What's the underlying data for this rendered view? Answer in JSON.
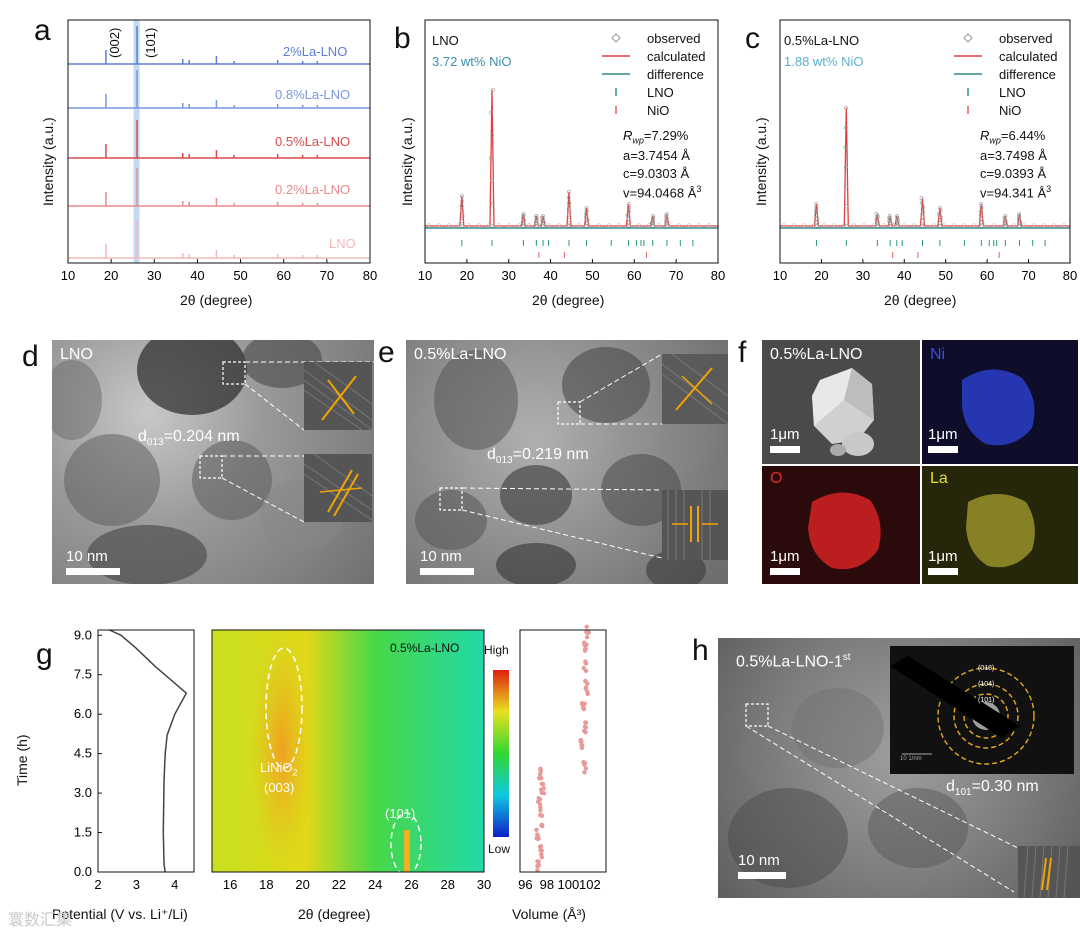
{
  "figure": {
    "panel_letters": [
      "a",
      "b",
      "c",
      "d",
      "e",
      "f",
      "g",
      "h"
    ],
    "watermark": "寰数汇集"
  },
  "panel_a": {
    "peaks": [
      "(002)",
      "(101)"
    ],
    "samples": [
      {
        "name": "2%La-LNO",
        "color": "#5b7fd6"
      },
      {
        "name": "0.8%La-LNO",
        "color": "#7a98e0"
      },
      {
        "name": "0.5%La-LNO",
        "color": "#d94a4a"
      },
      {
        "name": "0.2%La-LNO",
        "color": "#e88a8a"
      },
      {
        "name": "LNO",
        "color": "#f2b8b8"
      }
    ],
    "xlabel": "2θ (degree)",
    "ylabel": "Intensity (a.u.)",
    "xticks": [
      "10",
      "20",
      "30",
      "40",
      "50",
      "60",
      "70",
      "80"
    ]
  },
  "panel_b": {
    "sample": "LNO",
    "nio": "3.72 wt% NiO",
    "legend": [
      "observed",
      "calculated",
      "difference",
      "LNO",
      "NiO"
    ],
    "rwp_label": "R",
    "rwp_sub": "wp",
    "rwp_value": "=7.29%",
    "a": "a=3.7454 Å",
    "c": "c=9.0303 Å",
    "v": "v=94.0468 Å",
    "v_sup": "3",
    "xlabel": "2θ (degree)",
    "ylabel": "Intensity (a.u.)",
    "xticks": [
      "10",
      "20",
      "30",
      "40",
      "50",
      "60",
      "70",
      "80"
    ]
  },
  "panel_c": {
    "sample": "0.5%La-LNO",
    "nio": "1.88 wt% NiO",
    "legend": [
      "observed",
      "calculated",
      "difference",
      "LNO",
      "NiO"
    ],
    "rwp_label": "R",
    "rwp_sub": "wp",
    "rwp_value": "=6.44%",
    "a": "a=3.7498 Å",
    "c": "c=9.0393 Å",
    "v": "v=94.341 Å",
    "v_sup": "3",
    "xlabel": "2θ (degree)",
    "ylabel": "Intensity (a.u.)",
    "xticks": [
      "10",
      "20",
      "30",
      "40",
      "50",
      "60",
      "70",
      "80"
    ]
  },
  "panel_d": {
    "sample": "LNO",
    "d_prefix": "d",
    "d_sub": "013",
    "d_value": "=0.204 nm",
    "scale": "10 nm"
  },
  "panel_e": {
    "sample": "0.5%La-LNO",
    "d_prefix": "d",
    "d_sub": "013",
    "d_value": "=0.219 nm",
    "scale": "10 nm"
  },
  "panel_f": {
    "sample": "0.5%La-LNO",
    "maps": [
      {
        "element": "Ni",
        "color": "#2a3cc8"
      },
      {
        "element": "O",
        "color": "#d42222"
      },
      {
        "element": "La",
        "color": "#c8c030"
      }
    ],
    "scale": "1μm"
  },
  "panel_g": {
    "sample": "0.5%La-LNO",
    "ylabel": "Time (h)",
    "yticks": [
      "0.0",
      "1.5",
      "3.0",
      "4.5",
      "6.0",
      "7.5",
      "9.0"
    ],
    "potential_xlabel": "Potential (V vs. Li⁺/Li)",
    "potential_xticks": [
      "2",
      "3",
      "4"
    ],
    "map_xlabel": "2θ (degree)",
    "map_xticks": [
      "16",
      "18",
      "20",
      "22",
      "24",
      "26",
      "28",
      "30"
    ],
    "volume_xlabel": "Volume (Å³)",
    "volume_xticks": [
      "96",
      "98",
      "100",
      "102"
    ],
    "colorbar_high": "High",
    "colorbar_low": "Low",
    "peak1_a": "LiNiO",
    "peak1_sub": "2",
    "peak1_b": "(003)",
    "peak2": "(101)"
  },
  "panel_h": {
    "sample": "0.5%La-LNO-1",
    "sample_sup": "st",
    "d_prefix": "d",
    "d_sub": "101",
    "d_value": "=0.30 nm",
    "scale": "10 nm",
    "saed_rings": [
      "(018)",
      "(104)",
      "(101)"
    ],
    "saed_scale": "10 1/nm"
  },
  "chart_data": [
    {
      "type": "line",
      "title": "a",
      "xlabel": "2θ (degree)",
      "ylabel": "Intensity (a.u.)",
      "xlim": [
        10,
        80
      ],
      "series": [
        {
          "name": "LNO",
          "peaks": [
            18.8,
            36.6,
            38.1,
            44.4,
            48.5,
            58.6,
            64.4,
            67.8
          ]
        },
        {
          "name": "0.2%La-LNO",
          "peaks": [
            18.8,
            36.6,
            38.1,
            44.4,
            48.5,
            58.6,
            64.4,
            67.8
          ]
        },
        {
          "name": "0.5%La-LNO",
          "peaks": [
            18.8,
            36.6,
            38.1,
            44.4,
            48.5,
            58.6,
            64.4,
            67.8
          ]
        },
        {
          "name": "0.8%La-LNO",
          "peaks": [
            18.8,
            36.6,
            38.1,
            44.4,
            48.5,
            58.6,
            64.4,
            67.8
          ]
        },
        {
          "name": "2%La-LNO",
          "peaks": [
            18.8,
            36.6,
            38.1,
            44.4,
            48.5,
            58.6,
            64.4,
            67.8
          ]
        }
      ],
      "highlight_range": [
        25.2,
        26.6
      ]
    },
    {
      "type": "line",
      "title": "g potential",
      "xlabel": "Potential (V vs. Li+/Li)",
      "ylabel": "Time (h)",
      "xlim": [
        2,
        4.5
      ],
      "ylim": [
        0,
        9.2
      ],
      "points": [
        [
          3.75,
          0
        ],
        [
          3.72,
          0.3
        ],
        [
          3.7,
          1.5
        ],
        [
          3.72,
          3.5
        ],
        [
          3.75,
          4.5
        ],
        [
          3.8,
          5.2
        ],
        [
          4.0,
          6.0
        ],
        [
          4.3,
          6.8
        ],
        [
          3.9,
          7.3
        ],
        [
          3.5,
          7.8
        ],
        [
          3.0,
          8.5
        ],
        [
          2.6,
          9.0
        ],
        [
          2.3,
          9.2
        ]
      ]
    },
    {
      "type": "scatter",
      "title": "g volume",
      "xlabel": "Volume (Å³)",
      "ylabel": "Time (h)",
      "xlim": [
        96,
        103
      ],
      "ylim": [
        0,
        9.2
      ],
      "points": [
        [
          97.2,
          0.2
        ],
        [
          97.4,
          0.8
        ],
        [
          97.1,
          1.4
        ],
        [
          97.5,
          2.0
        ],
        [
          97.3,
          2.6
        ],
        [
          97.6,
          3.2
        ],
        [
          97.4,
          3.7
        ],
        [
          101.5,
          4.0
        ],
        [
          101.2,
          4.8
        ],
        [
          101.6,
          5.5
        ],
        [
          101.4,
          6.2
        ],
        [
          101.7,
          7.0
        ],
        [
          101.5,
          7.8
        ],
        [
          101.6,
          8.5
        ],
        [
          101.8,
          9.1
        ]
      ]
    }
  ]
}
